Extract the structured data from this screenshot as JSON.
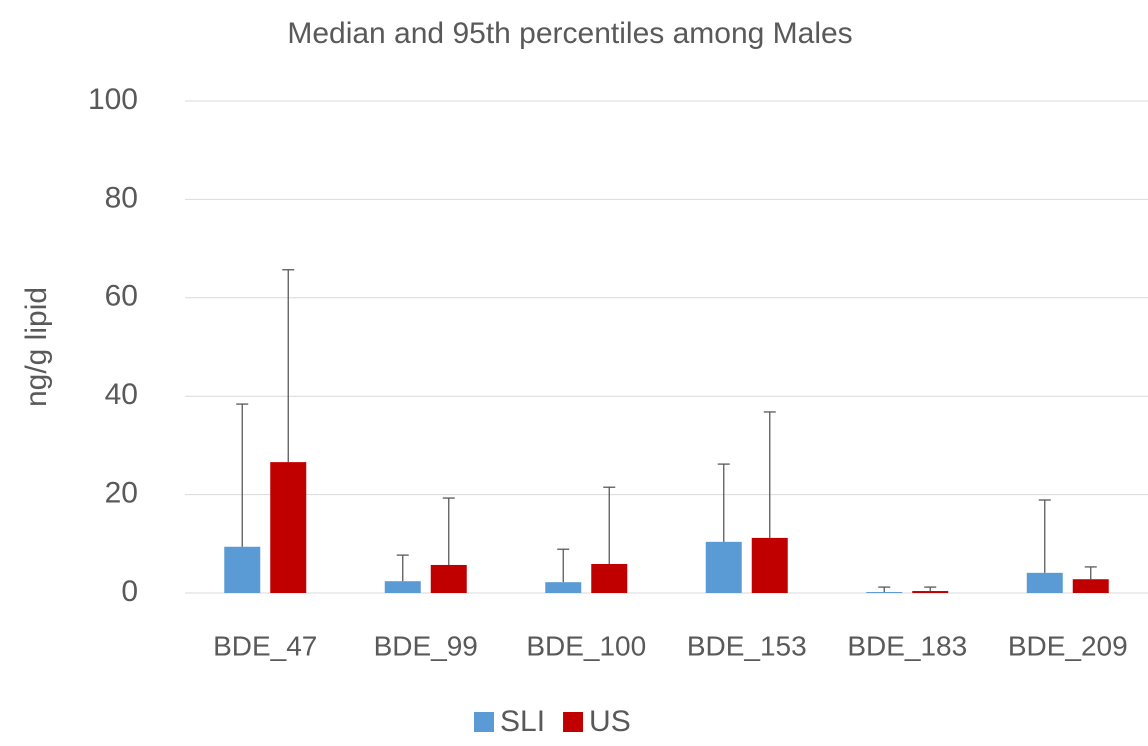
{
  "chart_data": {
    "type": "bar",
    "title": "Median and 95th percentiles among Males",
    "y_label": "ng/g lipid",
    "categories": [
      "BDE_47",
      "BDE_99",
      "BDE_100",
      "BDE_153",
      "BDE_183",
      "BDE_209"
    ],
    "series": [
      {
        "name": "SLI",
        "color": "#5b9bd5",
        "values": [
          9.4,
          2.4,
          2.2,
          10.4,
          0.2,
          4.1
        ],
        "upper": [
          38.4,
          7.7,
          8.9,
          26.2,
          1.2,
          18.9
        ]
      },
      {
        "name": "US",
        "color": "#c00000",
        "values": [
          26.6,
          5.7,
          5.9,
          11.2,
          0.4,
          2.8
        ],
        "upper": [
          65.7,
          19.3,
          21.5,
          36.8,
          1.2,
          5.3
        ]
      }
    ],
    "ylim": [
      0,
      100
    ],
    "yticks": [
      0,
      20,
      40,
      60,
      80,
      100
    ],
    "grid": true,
    "legend": "bottom"
  }
}
